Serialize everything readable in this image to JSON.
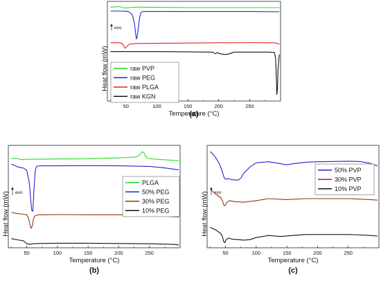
{
  "chart_data": [
    {
      "panel_label": "(a)",
      "type": "line",
      "xlabel": "Temperature (°C)",
      "ylabel": "Heat flow (mW)",
      "xlim": [
        20,
        300
      ],
      "xticks": [
        50,
        100,
        150,
        200,
        250
      ],
      "y_axis_ticks": false,
      "exo_label": "exo",
      "legend_position": "bottom-left",
      "series": [
        {
          "name": "raw PVP",
          "color": "#22dd22",
          "x": [
            25,
            40,
            45,
            50,
            55,
            60,
            70,
            80,
            100,
            150,
            200,
            250,
            290,
            298
          ],
          "y": [
            8.75,
            8.8,
            8.72,
            8.68,
            8.72,
            8.74,
            8.76,
            8.75,
            8.74,
            8.72,
            8.72,
            8.72,
            8.72,
            8.72
          ]
        },
        {
          "name": "raw PEG",
          "color": "#2222cc",
          "x": [
            25,
            40,
            50,
            55,
            60,
            62,
            64,
            66,
            67,
            68,
            70,
            72,
            74,
            76,
            80,
            100,
            150,
            200,
            250,
            298
          ],
          "y": [
            8.45,
            8.45,
            8.44,
            8.4,
            8.2,
            7.9,
            7.4,
            6.6,
            6.3,
            6.4,
            7.1,
            7.9,
            8.3,
            8.4,
            8.42,
            8.42,
            8.42,
            8.42,
            8.42,
            8.4
          ]
        },
        {
          "name": "raw PLGA",
          "color": "#dd2222",
          "x": [
            25,
            40,
            44,
            47,
            49,
            52,
            56,
            60,
            70,
            100,
            150,
            200,
            250,
            290,
            298
          ],
          "y": [
            6.0,
            6.0,
            5.95,
            5.7,
            5.58,
            5.75,
            5.9,
            5.92,
            5.95,
            5.96,
            5.98,
            6.0,
            6.02,
            6.0,
            5.9
          ]
        },
        {
          "name": "raw KGN",
          "color": "#111111",
          "x": [
            25,
            50,
            100,
            150,
            190,
            195,
            198,
            202,
            210,
            215,
            220,
            225,
            260,
            280,
            290,
            292,
            293,
            294,
            295,
            296,
            298
          ],
          "y": [
            5.32,
            5.32,
            5.32,
            5.3,
            5.28,
            5.15,
            5.25,
            5.15,
            5.1,
            5.12,
            5.2,
            5.28,
            5.28,
            5.28,
            5.26,
            4.8,
            3.5,
            2.0,
            2.4,
            4.0,
            5.1
          ]
        }
      ]
    },
    {
      "panel_label": "(b)",
      "type": "line",
      "xlabel": "Temperature (°C)",
      "ylabel": "Heat flow (mW)",
      "xlim": [
        20,
        300
      ],
      "xticks": [
        50,
        100,
        150,
        200,
        250
      ],
      "y_axis_ticks": false,
      "exo_label": "exo",
      "legend_position": "right",
      "series": [
        {
          "name": "PLGA",
          "color": "#22dd22",
          "x": [
            25,
            35,
            40,
            45,
            50,
            60,
            100,
            150,
            200,
            220,
            230,
            235,
            238,
            241,
            244,
            248,
            255,
            270,
            298
          ],
          "y": [
            9.05,
            9.05,
            8.95,
            8.95,
            8.97,
            8.98,
            9.0,
            9.02,
            9.1,
            9.15,
            9.2,
            9.4,
            9.65,
            9.55,
            9.2,
            9.05,
            9.0,
            8.95,
            8.85
          ]
        },
        {
          "name": "50% PEG",
          "color": "#2222cc",
          "x": [
            25,
            30,
            35,
            40,
            45,
            50,
            54,
            56,
            58,
            60,
            62,
            64,
            66,
            70,
            80,
            100,
            150,
            200,
            250,
            270,
            298
          ],
          "y": [
            8.55,
            8.45,
            8.3,
            8.25,
            8.2,
            8.0,
            7.0,
            5.8,
            4.5,
            4.4,
            6.5,
            8.0,
            8.35,
            8.4,
            8.4,
            8.4,
            8.42,
            8.4,
            8.35,
            8.25,
            8.05
          ]
        },
        {
          "name": "30% PEG",
          "color": "#993311",
          "x": [
            25,
            35,
            45,
            50,
            53,
            55,
            57,
            59,
            61,
            63,
            66,
            70,
            80,
            100,
            150,
            200,
            250,
            270,
            298
          ],
          "y": [
            4.3,
            4.2,
            4.15,
            4.1,
            3.8,
            3.3,
            2.9,
            3.1,
            3.7,
            4.0,
            4.05,
            4.1,
            4.1,
            4.12,
            4.1,
            4.1,
            4.05,
            4.0,
            3.9
          ]
        },
        {
          "name": "10% PEG",
          "color": "#111111",
          "x": [
            25,
            35,
            45,
            50,
            55,
            60,
            70,
            100,
            150,
            200,
            250,
            290,
            298
          ],
          "y": [
            2.0,
            1.9,
            1.8,
            1.55,
            1.5,
            1.55,
            1.58,
            1.6,
            1.6,
            1.58,
            1.55,
            1.5,
            1.45
          ]
        }
      ]
    },
    {
      "panel_label": "(c)",
      "type": "line",
      "xlabel": "Temperature (°C)",
      "ylabel": "Heat flow (mW)",
      "xlim": [
        20,
        300
      ],
      "xticks": [
        50,
        100,
        150,
        200,
        250
      ],
      "y_axis_ticks": false,
      "exo_label": "exo",
      "legend_position": "top-right",
      "series": [
        {
          "name": "50% PVP",
          "color": "#2222cc",
          "x": [
            25,
            30,
            35,
            40,
            45,
            48,
            50,
            55,
            60,
            70,
            75,
            80,
            90,
            100,
            120,
            140,
            150,
            160,
            180,
            200,
            250,
            270,
            285,
            298
          ],
          "y": [
            10.2,
            9.9,
            9.5,
            9.0,
            8.2,
            7.6,
            7.5,
            7.55,
            7.45,
            7.4,
            7.6,
            8.1,
            8.7,
            9.1,
            9.2,
            9.0,
            8.9,
            9.0,
            9.15,
            9.2,
            9.25,
            9.22,
            9.05,
            8.8
          ]
        },
        {
          "name": "30% PVP",
          "color": "#993311",
          "x": [
            25,
            35,
            42,
            45,
            47,
            49,
            51,
            53,
            57,
            65,
            80,
            100,
            120,
            150,
            180,
            200,
            250,
            270,
            285,
            298
          ],
          "y": [
            6.5,
            6.0,
            5.7,
            5.4,
            5.0,
            4.9,
            5.1,
            5.3,
            5.4,
            5.3,
            5.25,
            5.4,
            5.6,
            5.5,
            5.6,
            5.6,
            5.6,
            5.55,
            5.5,
            5.45
          ]
        },
        {
          "name": "10% PVP",
          "color": "#111111",
          "x": [
            25,
            35,
            42,
            45,
            47,
            49,
            51,
            55,
            60,
            70,
            80,
            90,
            100,
            120,
            140,
            160,
            180,
            200,
            250,
            270,
            285,
            298
          ],
          "y": [
            2.8,
            2.5,
            2.2,
            1.9,
            1.4,
            1.3,
            1.6,
            1.75,
            1.65,
            1.6,
            1.55,
            1.6,
            1.8,
            2.0,
            1.9,
            2.0,
            2.1,
            2.1,
            2.1,
            2.05,
            2.0,
            1.95
          ]
        }
      ]
    }
  ]
}
